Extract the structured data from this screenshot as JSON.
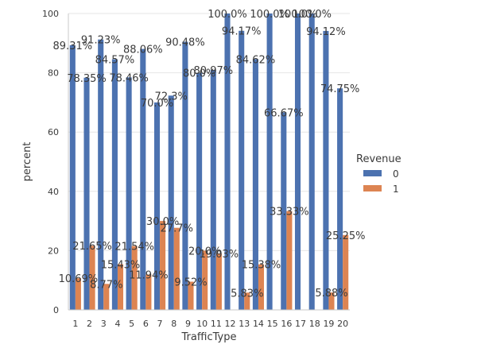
{
  "chart_data": {
    "type": "bar",
    "title": "",
    "xlabel": "TrafficType",
    "ylabel": "percent",
    "ylim": [
      0,
      100
    ],
    "yticks": [
      0,
      20,
      40,
      60,
      80,
      100
    ],
    "grid": true,
    "legend": {
      "title": "Revenue",
      "position": "right"
    },
    "categories": [
      "1",
      "2",
      "3",
      "4",
      "5",
      "6",
      "7",
      "8",
      "9",
      "10",
      "11",
      "12",
      "13",
      "14",
      "15",
      "16",
      "17",
      "18",
      "19",
      "20"
    ],
    "series": [
      {
        "name": "0",
        "color": "#4c72b0",
        "values": [
          89.31,
          78.35,
          91.23,
          84.57,
          78.46,
          88.06,
          70.0,
          72.3,
          90.48,
          80.0,
          80.97,
          100.0,
          94.17,
          84.62,
          100.0,
          66.67,
          100.0,
          100.0,
          94.12,
          74.75
        ],
        "labels": [
          "89.31%",
          "78.35%",
          "91.23%",
          "84.57%",
          "78.46%",
          "88.06%",
          "70.0%",
          "72.3%",
          "90.48%",
          "80.0%",
          "80.97%",
          "100.0%",
          "94.17%",
          "84.62%",
          "100.0%",
          "66.67%",
          "100.0%",
          "100.0%",
          "94.12%",
          "74.75%"
        ]
      },
      {
        "name": "1",
        "color": "#dd8452",
        "values": [
          10.69,
          21.65,
          8.77,
          15.43,
          21.54,
          11.94,
          30.0,
          27.7,
          9.52,
          20.0,
          19.03,
          0,
          5.83,
          15.38,
          0,
          33.33,
          0,
          0,
          5.88,
          25.25
        ],
        "labels": [
          "10.69%",
          "21.65%",
          "8.77%",
          "15.43%",
          "21.54%",
          "11.94%",
          "30.0%",
          "27.7%",
          "9.52%",
          "20.0%",
          "19.03%",
          "",
          "5.83%",
          "15.38%",
          "",
          "33.33%",
          "",
          "",
          "5.88%",
          "25.25%"
        ]
      }
    ]
  }
}
